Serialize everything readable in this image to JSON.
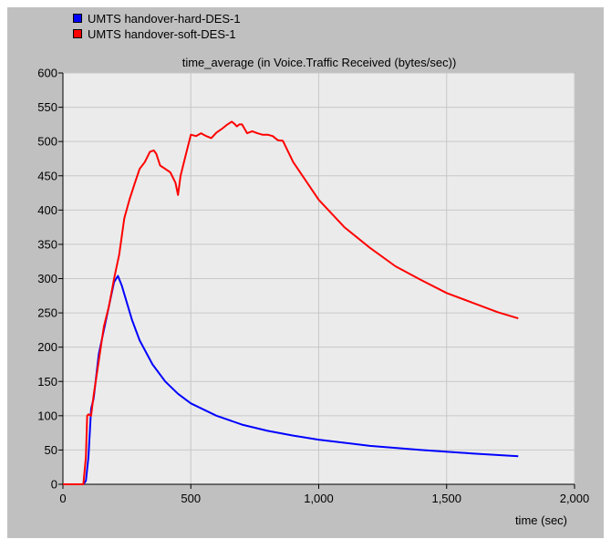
{
  "chart_data": {
    "type": "line",
    "title": "time_average (in Voice.Traffic Received (bytes/sec))",
    "xlabel": "time (sec)",
    "ylabel": "",
    "xlim": [
      0,
      2000
    ],
    "ylim": [
      0,
      600
    ],
    "x_ticks": [
      0,
      500,
      1000,
      1500,
      2000
    ],
    "x_tick_labels": [
      "0",
      "500",
      "1,000",
      "1,500",
      "2,000"
    ],
    "y_ticks": [
      0,
      50,
      100,
      150,
      200,
      250,
      300,
      350,
      400,
      450,
      500,
      550,
      600
    ],
    "y_tick_labels": [
      "0",
      "50",
      "100",
      "150",
      "200",
      "250",
      "300",
      "350",
      "400",
      "450",
      "500",
      "550",
      "600"
    ],
    "grid": true,
    "legend_position": "top-left",
    "background_color": "#ebebeb",
    "series": [
      {
        "name": "UMTS handover-hard-DES-1",
        "color": "#0000ff",
        "x": [
          0,
          60,
          80,
          90,
          100,
          110,
          120,
          140,
          160,
          180,
          200,
          215,
          230,
          250,
          270,
          300,
          350,
          400,
          450,
          500,
          600,
          700,
          800,
          900,
          1000,
          1200,
          1400,
          1600,
          1780
        ],
        "y": [
          0,
          0,
          0,
          5,
          40,
          110,
          125,
          190,
          225,
          260,
          295,
          304,
          290,
          265,
          240,
          210,
          175,
          150,
          132,
          118,
          100,
          87,
          78,
          71,
          65,
          56,
          50,
          45,
          41
        ]
      },
      {
        "name": "UMTS handover-soft-DES-1",
        "color": "#ff0000",
        "x": [
          0,
          60,
          80,
          90,
          95,
          100,
          110,
          120,
          140,
          160,
          180,
          200,
          220,
          240,
          260,
          280,
          300,
          320,
          340,
          355,
          365,
          380,
          400,
          420,
          440,
          450,
          460,
          480,
          500,
          520,
          540,
          560,
          580,
          600,
          620,
          640,
          660,
          670,
          680,
          690,
          700,
          720,
          740,
          760,
          780,
          800,
          820,
          840,
          860,
          900,
          1000,
          1100,
          1200,
          1300,
          1400,
          1500,
          1600,
          1700,
          1780
        ],
        "y": [
          0,
          0,
          0,
          40,
          100,
          102,
          100,
          130,
          180,
          230,
          260,
          300,
          335,
          388,
          415,
          438,
          460,
          470,
          485,
          487,
          482,
          465,
          460,
          455,
          440,
          422,
          450,
          480,
          510,
          508,
          512,
          508,
          505,
          513,
          518,
          524,
          529,
          526,
          522,
          525,
          525,
          512,
          515,
          512,
          510,
          510,
          508,
          502,
          501,
          470,
          415,
          375,
          345,
          318,
          298,
          279,
          265,
          251,
          242
        ]
      }
    ]
  }
}
